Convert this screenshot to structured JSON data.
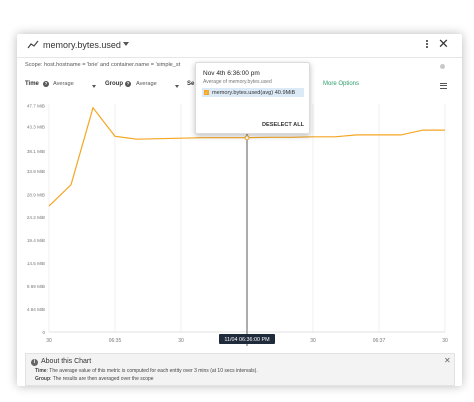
{
  "header": {
    "metric_name": "memory.bytes.used",
    "metric_icon": "line-chart-icon",
    "menu_icon": "kebab-menu-icon",
    "close_icon": "close-icon"
  },
  "scope": {
    "text": "Scope: host.hostname = 'brie' and container.name = 'simple_st"
  },
  "controls": {
    "time_label": "Time",
    "time_value": "Average",
    "group_label": "Group",
    "group_value": "Average",
    "segment_label": "Se",
    "more_options": "More Options"
  },
  "tooltip": {
    "time": "Nov 4th 6:36:00 pm",
    "metric": "Average of memory.bytes.used",
    "series": "memory.bytes.used(avg) 40.9MiB",
    "deselect_all": "DESELECT ALL"
  },
  "chart_data": {
    "type": "line",
    "y_ticks": [
      "0",
      "4.84 MiB",
      "9.69 MiB",
      "14.5 MiB",
      "19.4 MiB",
      "24.2 MiB",
      "28.9 MiB",
      "33.9 MiB",
      "38.1 MiB",
      "43.3 MiB",
      "47.7 MiB"
    ],
    "y_tick_values": [
      0,
      4.84,
      9.69,
      14.5,
      19.4,
      24.2,
      28.9,
      33.9,
      38.1,
      43.3,
      47.7
    ],
    "ylim": [
      0,
      48
    ],
    "x_ticks": [
      "30",
      "06:35",
      "30",
      "06:36",
      "30",
      "06:37",
      "30"
    ],
    "x_tick_minutes": [
      0,
      0.5,
      1,
      1.5,
      2,
      2.5,
      3
    ],
    "xlim": [
      0,
      3
    ],
    "crosshair_label": "11/04 06:36:00 PM",
    "crosshair_x": 1.5,
    "series": [
      {
        "name": "memory.bytes.used(avg)",
        "color": "#f5a623",
        "x": [
          0,
          0.167,
          0.333,
          0.5,
          0.667,
          0.833,
          1,
          1.167,
          1.333,
          1.5,
          1.667,
          1.833,
          2,
          2.167,
          2.333,
          2.5,
          2.667,
          2.833,
          3
        ],
        "y": [
          26.5,
          31,
          47.2,
          41.2,
          40.6,
          40.7,
          40.8,
          40.9,
          40.9,
          40.9,
          41.0,
          41.0,
          41.1,
          41.1,
          41.5,
          41.5,
          41.5,
          42.5,
          42.5
        ]
      }
    ]
  },
  "about": {
    "title": "About this Chart",
    "time_line_prefix": "Time",
    "time_line": ": The average value of this metric is computed for each entity over 3 mins (at 10 secs intervals).",
    "group_line_prefix": "Group",
    "group_line": ": The results are then averaged over the scope"
  }
}
